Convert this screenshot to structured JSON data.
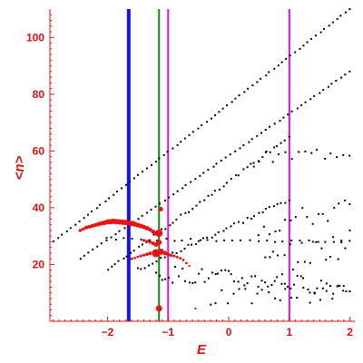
{
  "chart_data": {
    "type": "scatter",
    "xlabel": "E",
    "ylabel": "<n>",
    "xlim": [
      -2.95,
      2.08
    ],
    "ylim": [
      0,
      110
    ],
    "xticks": [
      -2,
      -1,
      0,
      1,
      2
    ],
    "xtick_labels": [
      "−2",
      "−1",
      "0",
      "1",
      "2"
    ],
    "yticks": [
      20,
      40,
      60,
      80,
      100
    ],
    "ytick_labels": [
      "20",
      "40",
      "60",
      "80",
      "100"
    ],
    "grid": false,
    "colors": {
      "axis": "#dd1111",
      "black_series": "#000000",
      "red_series": "#ee1111"
    },
    "vertical_lines": [
      {
        "x": -1.65,
        "color": "#1111ee"
      },
      {
        "x": -1.15,
        "color": "#118811"
      },
      {
        "x": -1.0,
        "color": "#dd11dd"
      },
      {
        "x": 1.0,
        "color": "#dd11dd"
      }
    ],
    "black_bands": [
      {
        "x": [
          -2.95,
          2.0
        ],
        "y": [
          27,
          110
        ],
        "count": 72,
        "jitter": 0
      },
      {
        "x": [
          -2.45,
          2.0
        ],
        "y": [
          22,
          88
        ],
        "count": 62,
        "jitter": 0
      },
      {
        "x": [
          -2.0,
          1.0
        ],
        "y": [
          18,
          65
        ],
        "count": 48,
        "jitter": 0.6
      },
      {
        "x": [
          -1.5,
          1.0
        ],
        "y": [
          18,
          43
        ],
        "count": 40,
        "jitter": 0.8
      },
      {
        "x": [
          -2.0,
          2.0
        ],
        "y": [
          29,
          28
        ],
        "count": 30,
        "jitter": 0.4
      },
      {
        "x": [
          0.4,
          2.0
        ],
        "y": [
          57,
          60
        ],
        "count": 16,
        "jitter": 2.5
      },
      {
        "x": [
          0.5,
          2.0
        ],
        "y": [
          33,
          40
        ],
        "count": 18,
        "jitter": 4
      },
      {
        "x": [
          0.6,
          2.0
        ],
        "y": [
          20,
          28
        ],
        "count": 22,
        "jitter": 5
      },
      {
        "x": [
          -1.2,
          2.0
        ],
        "y": [
          17,
          12
        ],
        "count": 60,
        "jitter": 3
      },
      {
        "x": [
          -0.3,
          1.9
        ],
        "y": [
          8,
          10
        ],
        "count": 24,
        "jitter": 3
      }
    ],
    "red_points": [
      [
        -2.45,
        32,
        1.8
      ],
      [
        -2.4,
        32.5,
        1.8
      ],
      [
        -2.35,
        33,
        2
      ],
      [
        -2.3,
        33.3,
        2
      ],
      [
        -2.25,
        33.6,
        2.2
      ],
      [
        -2.2,
        33.9,
        2.2
      ],
      [
        -2.15,
        34.2,
        2.4
      ],
      [
        -2.1,
        34.5,
        2.5
      ],
      [
        -2.05,
        34.7,
        2.6
      ],
      [
        -2.0,
        35,
        2.8
      ],
      [
        -1.95,
        35.1,
        3
      ],
      [
        -1.9,
        35.2,
        3
      ],
      [
        -1.85,
        35.1,
        3
      ],
      [
        -1.8,
        35,
        3
      ],
      [
        -1.75,
        34.9,
        3
      ],
      [
        -1.7,
        34.8,
        3
      ],
      [
        -1.65,
        34.6,
        3
      ],
      [
        -1.6,
        34.4,
        3
      ],
      [
        -1.55,
        34.2,
        2.8
      ],
      [
        -1.5,
        33.9,
        2.6
      ],
      [
        -1.45,
        33.6,
        2.6
      ],
      [
        -1.4,
        33.2,
        2.4
      ],
      [
        -1.35,
        32.8,
        2.4
      ],
      [
        -1.3,
        32.3,
        2.2
      ],
      [
        -1.25,
        31.6,
        2.2
      ],
      [
        -1.2,
        31,
        2.6
      ],
      [
        -1.15,
        31,
        4
      ],
      [
        -1.12,
        39.5,
        2.5
      ],
      [
        -1.4,
        28.5,
        1.6
      ],
      [
        -1.35,
        28.2,
        1.6
      ],
      [
        -1.3,
        27.9,
        1.8
      ],
      [
        -1.25,
        27.5,
        2
      ],
      [
        -1.2,
        27,
        2.4
      ],
      [
        -1.15,
        27.8,
        3
      ],
      [
        -1.6,
        22,
        1.4
      ],
      [
        -1.55,
        22.3,
        1.4
      ],
      [
        -1.5,
        22.7,
        1.4
      ],
      [
        -1.45,
        23,
        1.6
      ],
      [
        -1.4,
        23.3,
        1.6
      ],
      [
        -1.35,
        23.6,
        1.8
      ],
      [
        -1.3,
        23.9,
        2
      ],
      [
        -1.2,
        24,
        4.5
      ],
      [
        -1.12,
        24.5,
        3.5
      ],
      [
        -1.05,
        24,
        2.4
      ],
      [
        -1.0,
        23.5,
        2
      ],
      [
        -0.95,
        23.2,
        1.6
      ],
      [
        -0.9,
        23,
        1.6
      ],
      [
        -0.85,
        22.6,
        1.4
      ],
      [
        -0.8,
        22.2,
        1.4
      ],
      [
        -0.75,
        21.6,
        1.4
      ],
      [
        -0.7,
        20.5,
        1.4
      ],
      [
        -0.65,
        19.5,
        1.2
      ],
      [
        -1.15,
        4.5,
        3.5
      ],
      [
        -0.55,
        4.5,
        1.2
      ]
    ]
  }
}
